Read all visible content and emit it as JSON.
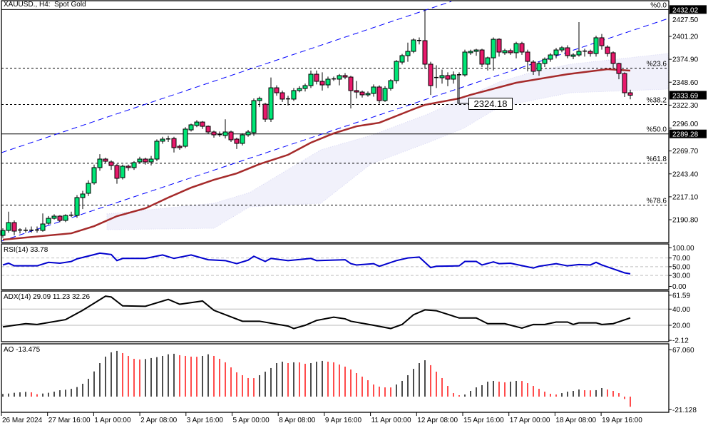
{
  "header": {
    "title": "XAUUSD., H4:  Spot Gold"
  },
  "colors": {
    "bull": "#00e676",
    "bear": "#e8196b",
    "ma": "#a52a2a",
    "channel": "#0000ff",
    "rsi": "#0000cd",
    "adx": "#000000",
    "ao_up": "#000000",
    "ao_down": "#ff0000",
    "cloud": "#d8d8f4"
  },
  "annotation": {
    "label": "2324.18"
  },
  "chart_data": [
    {
      "type": "candlestick",
      "symbol": "XAUUSD.",
      "timeframe": "H4",
      "ylim": [
        2180.0,
        2435.0
      ],
      "grid": false,
      "x_tick_labels": [
        "26 Mar 2024",
        "27 Mar 16:00",
        "1 Apr 00:00",
        "2 Apr 08:00",
        "3 Apr 16:00",
        "5 Apr 00:00",
        "8 Apr 08:00",
        "9 Apr 16:00",
        "11 Apr 00:00",
        "12 Apr 08:00",
        "15 Apr 16:00",
        "17 Apr 00:00",
        "18 Apr 08:00",
        "19 Apr 16:00"
      ],
      "y_tick_labels": [
        "2427.50",
        "2401.20",
        "2374.90",
        "2348.60",
        "2322.30",
        "2296.00",
        "2269.70",
        "2243.40",
        "2217.10",
        "2190.80"
      ],
      "highlighted_prices": [
        "2432.02",
        "2333.69",
        "2289.28"
      ],
      "ohlc_fields": [
        "open",
        "high",
        "low",
        "close"
      ],
      "ohlc": [
        [
          2172.8,
          2181,
          2170,
          2178.5
        ],
        [
          2178.5,
          2200,
          2176,
          2187.5
        ],
        [
          2187.5,
          2190,
          2173,
          2177.7
        ],
        [
          2178,
          2181,
          2175,
          2179
        ],
        [
          2178.5,
          2182,
          2176,
          2178.7
        ],
        [
          2178.5,
          2183,
          2176,
          2178.8
        ],
        [
          2178.6,
          2183,
          2176,
          2179
        ],
        [
          2178.5,
          2198,
          2177,
          2185.9
        ],
        [
          2186.7,
          2195,
          2185,
          2192.4
        ],
        [
          2192.4,
          2197,
          2191,
          2194.9
        ],
        [
          2194.9,
          2196,
          2188,
          2190.0
        ],
        [
          2190,
          2197,
          2188,
          2195.7
        ],
        [
          2195.7,
          2200,
          2194,
          2196
        ],
        [
          2195.7,
          2219,
          2193,
          2216.2
        ],
        [
          2216.2,
          2224,
          2203,
          2220.3
        ],
        [
          2221.1,
          2236,
          2218,
          2232.5
        ],
        [
          2233,
          2254,
          2231,
          2250.6
        ],
        [
          2250.6,
          2266,
          2247,
          2260.4
        ],
        [
          2260.4,
          2262,
          2256,
          2257.9
        ],
        [
          2257.1,
          2259,
          2248,
          2253
        ],
        [
          2253,
          2255,
          2232,
          2238.3
        ],
        [
          2239.1,
          2254,
          2237,
          2252.2
        ],
        [
          2252.2,
          2254,
          2247,
          2250.6
        ],
        [
          2250.6,
          2258,
          2248,
          2256.3
        ],
        [
          2257.1,
          2263,
          2255,
          2260.4
        ],
        [
          2260.4,
          2262,
          2254,
          2257.1
        ],
        [
          2257.1,
          2264,
          2253,
          2260.4
        ],
        [
          2260.4,
          2283,
          2258,
          2280.9
        ],
        [
          2280.9,
          2286,
          2278,
          2283.3
        ],
        [
          2283.3,
          2287,
          2280,
          2283.5
        ],
        [
          2284,
          2286,
          2268,
          2273.5
        ],
        [
          2275.1,
          2277,
          2271,
          2273.5
        ],
        [
          2275.1,
          2297,
          2273,
          2294.8
        ],
        [
          2293.9,
          2301,
          2292,
          2299.7
        ],
        [
          2298.9,
          2305,
          2297,
          2302.9
        ],
        [
          2302.9,
          2304,
          2295,
          2298
        ],
        [
          2298,
          2299,
          2289,
          2291.5
        ],
        [
          2291.5,
          2293,
          2285,
          2288.2
        ],
        [
          2288.2,
          2292,
          2286,
          2288.5
        ],
        [
          2287.4,
          2306,
          2284,
          2291.5
        ],
        [
          2291.5,
          2293,
          2280,
          2282.5
        ],
        [
          2283.3,
          2285,
          2272,
          2278.4
        ],
        [
          2278.4,
          2290,
          2276,
          2288.2
        ],
        [
          2288.2,
          2294,
          2286,
          2291.5
        ],
        [
          2290.7,
          2330,
          2287,
          2327.5
        ],
        [
          2327.5,
          2332,
          2320,
          2330
        ],
        [
          2323.4,
          2325,
          2303,
          2306.2
        ],
        [
          2306.2,
          2354,
          2303,
          2342.2
        ],
        [
          2342.2,
          2345,
          2333,
          2336.5
        ],
        [
          2336.5,
          2339,
          2326,
          2329.2
        ],
        [
          2329.2,
          2333,
          2322,
          2329.5
        ],
        [
          2329.2,
          2342,
          2327,
          2339
        ],
        [
          2339,
          2344,
          2337,
          2341.4
        ],
        [
          2341.4,
          2347,
          2338,
          2344.7
        ],
        [
          2344.7,
          2362,
          2342,
          2357.8
        ],
        [
          2357.8,
          2362,
          2346,
          2349.6
        ],
        [
          2349.6,
          2360,
          2339,
          2345.5
        ],
        [
          2345.5,
          2355,
          2342,
          2352.1
        ],
        [
          2352.1,
          2355,
          2350,
          2352.4
        ],
        [
          2352.1,
          2358,
          2345,
          2356.2
        ],
        [
          2356.2,
          2359,
          2352,
          2354.5
        ],
        [
          2354.5,
          2356,
          2318.5,
          2339
        ],
        [
          2339,
          2350,
          2330,
          2337.3
        ],
        [
          2337.3,
          2339,
          2331,
          2334.1
        ],
        [
          2334.1,
          2338,
          2332,
          2335.7
        ],
        [
          2335.7,
          2346,
          2332,
          2343.1
        ],
        [
          2343.1,
          2345,
          2324,
          2327.5
        ],
        [
          2327.5,
          2344,
          2326,
          2341.4
        ],
        [
          2341.4,
          2352,
          2339,
          2350.4
        ],
        [
          2350.4,
          2374,
          2347,
          2372.5
        ],
        [
          2371.7,
          2381,
          2369,
          2379.1
        ],
        [
          2379.1,
          2394,
          2372,
          2384
        ],
        [
          2384,
          2399,
          2382,
          2397.1
        ],
        [
          2396.3,
          2400,
          2392,
          2396.5
        ],
        [
          2396.3,
          2431.5,
          2364,
          2369.3
        ],
        [
          2369.3,
          2372,
          2334,
          2344.7
        ],
        [
          2353.7,
          2368,
          2342,
          2354
        ],
        [
          2353.7,
          2363,
          2347,
          2356.2
        ],
        [
          2356.2,
          2360,
          2344,
          2352.1
        ],
        [
          2352.1,
          2361,
          2347,
          2357
        ],
        [
          2357,
          2360,
          2324.18,
          2357.2
        ],
        [
          2357,
          2386,
          2355,
          2383.2
        ],
        [
          2382.4,
          2386,
          2380,
          2384
        ],
        [
          2384,
          2387,
          2379,
          2385.6
        ],
        [
          2385.6,
          2387,
          2366,
          2369.3
        ],
        [
          2369.3,
          2378,
          2362,
          2376.6
        ],
        [
          2376.6,
          2400,
          2362,
          2397.9
        ],
        [
          2397.9,
          2399,
          2378,
          2383.2
        ],
        [
          2382.4,
          2387,
          2380,
          2384.8
        ],
        [
          2384.8,
          2387,
          2380,
          2382.4
        ],
        [
          2382.4,
          2395,
          2376,
          2393
        ],
        [
          2393,
          2395,
          2380,
          2383.2
        ],
        [
          2383.2,
          2386,
          2361,
          2372.5
        ],
        [
          2371.7,
          2374,
          2357,
          2361.1
        ],
        [
          2361.9,
          2372,
          2356,
          2370.1
        ],
        [
          2370.1,
          2377,
          2366,
          2375
        ],
        [
          2375,
          2382,
          2372,
          2379.9
        ],
        [
          2379.9,
          2388,
          2376,
          2385.6
        ],
        [
          2385.6,
          2390,
          2383,
          2388.1
        ],
        [
          2388.1,
          2391,
          2376,
          2379.1
        ],
        [
          2378.3,
          2382,
          2375,
          2379.9
        ],
        [
          2379.9,
          2417.6,
          2378,
          2384
        ],
        [
          2384,
          2387,
          2378,
          2384.3
        ],
        [
          2384,
          2386,
          2378,
          2381.5
        ],
        [
          2381.5,
          2402,
          2378,
          2399.6
        ],
        [
          2399.6,
          2404,
          2386,
          2390.5
        ],
        [
          2388.9,
          2391,
          2378,
          2381.5
        ],
        [
          2382.4,
          2384,
          2365,
          2370.1
        ],
        [
          2370.1,
          2371,
          2352,
          2358.6
        ],
        [
          2358.6,
          2360,
          2331.6,
          2336.5
        ],
        [
          2336.5,
          2340,
          2329,
          2333.69
        ]
      ],
      "moving_average": [
        [
          0,
          2167.9
        ],
        [
          12,
          2175.2
        ],
        [
          16,
          2183.4
        ],
        [
          20,
          2194.9
        ],
        [
          25,
          2203.9
        ],
        [
          29,
          2216.2
        ],
        [
          33,
          2227.6
        ],
        [
          37,
          2236.6
        ],
        [
          41,
          2244.0
        ],
        [
          45,
          2254.6
        ],
        [
          50,
          2265.3
        ],
        [
          54,
          2279.2
        ],
        [
          58,
          2289.9
        ],
        [
          62,
          2298.0
        ],
        [
          66,
          2302.1
        ],
        [
          72,
          2317.7
        ],
        [
          74,
          2322.6
        ],
        [
          80,
          2330.0
        ],
        [
          82,
          2334.1
        ],
        [
          90,
          2348.0
        ],
        [
          99,
          2357.8
        ],
        [
          106,
          2363.5
        ],
        [
          110,
          2361.9
        ]
      ],
      "fibonacci": [
        {
          "label": "%0.0",
          "price": 2432.02,
          "style": "solid"
        },
        {
          "label": "%23.6",
          "price": 2364.65,
          "style": "dashed"
        },
        {
          "label": "%38.2",
          "price": 2322.97,
          "style": "dashed"
        },
        {
          "label": "%50.0",
          "price": 2289.28,
          "style": "solid"
        },
        {
          "label": "%61.8",
          "price": 2255.59,
          "style": "dashed"
        },
        {
          "label": "%78.6",
          "price": 2207.63,
          "style": "dashed"
        }
      ]
    },
    {
      "type": "line",
      "title": "RSI(14) 33.78",
      "ylim": [
        0,
        100
      ],
      "y_tick_labels": [
        "100.00",
        "70.00",
        "50.00",
        "30.00",
        "0.00"
      ],
      "levels": [
        70,
        50,
        30
      ],
      "points": [
        [
          0,
          54
        ],
        [
          1,
          58
        ],
        [
          2,
          52
        ],
        [
          6,
          52
        ],
        [
          8,
          60
        ],
        [
          10,
          58
        ],
        [
          12,
          62
        ],
        [
          13,
          68
        ],
        [
          17,
          81
        ],
        [
          19,
          78
        ],
        [
          20,
          64
        ],
        [
          21,
          69
        ],
        [
          25,
          69
        ],
        [
          28,
          77
        ],
        [
          30,
          69
        ],
        [
          33,
          77
        ],
        [
          36,
          66
        ],
        [
          39,
          64
        ],
        [
          41,
          57
        ],
        [
          43,
          65
        ],
        [
          44,
          74
        ],
        [
          46,
          62
        ],
        [
          47,
          69
        ],
        [
          50,
          64
        ],
        [
          54,
          69
        ],
        [
          55,
          64
        ],
        [
          60,
          66
        ],
        [
          61,
          57
        ],
        [
          62,
          54
        ],
        [
          65,
          57
        ],
        [
          66,
          51
        ],
        [
          69,
          64
        ],
        [
          71,
          70
        ],
        [
          73,
          72
        ],
        [
          75,
          48
        ],
        [
          76,
          51
        ],
        [
          80,
          52
        ],
        [
          81,
          62
        ],
        [
          83,
          62
        ],
        [
          84,
          54
        ],
        [
          86,
          61
        ],
        [
          87,
          57
        ],
        [
          89,
          58
        ],
        [
          93,
          47
        ],
        [
          94,
          51
        ],
        [
          97,
          57
        ],
        [
          99,
          52
        ],
        [
          101,
          55
        ],
        [
          103,
          54
        ],
        [
          104,
          60
        ],
        [
          105,
          54
        ],
        [
          107,
          45
        ],
        [
          109,
          36
        ],
        [
          110,
          33.78
        ]
      ]
    },
    {
      "type": "line",
      "title": "ADX(14) 29.09 11.23 32.26",
      "ylim": [
        -2.12,
        61.59
      ],
      "y_tick_labels": [
        "61.59",
        "40.00",
        "20.00",
        "-2.12"
      ],
      "levels": [
        40,
        20
      ],
      "points": [
        [
          0,
          18
        ],
        [
          4,
          22
        ],
        [
          6,
          21
        ],
        [
          11,
          27
        ],
        [
          14,
          38.5
        ],
        [
          18,
          56
        ],
        [
          19,
          55
        ],
        [
          21,
          44
        ],
        [
          25,
          43.5
        ],
        [
          29,
          52
        ],
        [
          31,
          46
        ],
        [
          35,
          50
        ],
        [
          37,
          38.5
        ],
        [
          42,
          25
        ],
        [
          45,
          25
        ],
        [
          50,
          19
        ],
        [
          51,
          16
        ],
        [
          53,
          20
        ],
        [
          55,
          26
        ],
        [
          58,
          30
        ],
        [
          60,
          28
        ],
        [
          61,
          25
        ],
        [
          65,
          20
        ],
        [
          68,
          16
        ],
        [
          70,
          21
        ],
        [
          72,
          33
        ],
        [
          74,
          39
        ],
        [
          76,
          38
        ],
        [
          80,
          29
        ],
        [
          83,
          29
        ],
        [
          85,
          22
        ],
        [
          88,
          22
        ],
        [
          91,
          16.5
        ],
        [
          93,
          21
        ],
        [
          95,
          21
        ],
        [
          97,
          24
        ],
        [
          99,
          24
        ],
        [
          100,
          21
        ],
        [
          101,
          23
        ],
        [
          104,
          23
        ],
        [
          105,
          21
        ],
        [
          107,
          22
        ],
        [
          110,
          29.09
        ]
      ]
    },
    {
      "type": "bar",
      "title": "AO -13.475",
      "ylim": [
        -21.128,
        67.06
      ],
      "y_tick_labels": [
        "67.060",
        "-21.128"
      ],
      "values": [
        3.5,
        4.1,
        5.1,
        5.7,
        6.3,
        5.7,
        3.2,
        4.1,
        5.1,
        6.6,
        8.5,
        9.2,
        10.4,
        12.7,
        17.1,
        23.7,
        33.5,
        44.6,
        53.2,
        58.9,
        60.8,
        57.9,
        54.1,
        50.3,
        49.4,
        50.0,
        51.3,
        52.5,
        54.1,
        56.3,
        57.0,
        55.1,
        54.1,
        53.2,
        53.0,
        54.1,
        56.3,
        54.1,
        50.3,
        45.6,
        38.9,
        32.3,
        28.5,
        24.7,
        24.6,
        28.5,
        33.2,
        38.0,
        44.6,
        46.5,
        44.6,
        45.6,
        45.5,
        43.7,
        44.6,
        46.5,
        47.5,
        46.5,
        45.6,
        42.7,
        39.9,
        36.1,
        31.3,
        26.6,
        21.8,
        16.1,
        13.3,
        12.3,
        12.2,
        16.1,
        20.9,
        28.5,
        37.0,
        44.6,
        48.4,
        41.8,
        33.2,
        24.7,
        14.2,
        4.7,
        1.9,
        2.8,
        7.6,
        12.3,
        15.2,
        19.9,
        20.9,
        19.9,
        19.0,
        19.9,
        20.9,
        20.8,
        18.0,
        14.2,
        10.4,
        6.6,
        3.8,
        2.8,
        4.7,
        6.6,
        7.6,
        9.5,
        8.5,
        8.4,
        8.6,
        11.4,
        9.5,
        7.6,
        4.7,
        -3.2,
        -13.475
      ]
    }
  ]
}
